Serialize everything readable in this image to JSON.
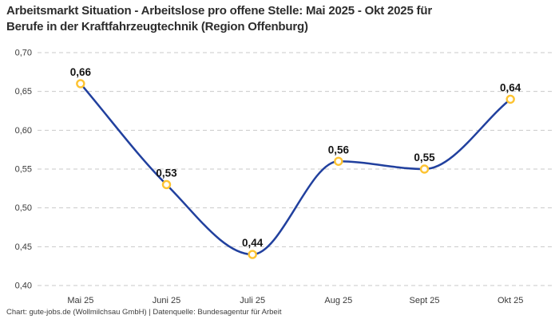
{
  "header": {
    "title_line1": "Arbeitsmarkt Situation - Arbeitslose pro offene Stelle: Mai 2025 - Okt 2025 für",
    "title_line2": "Berufe in der Kraftfahrzeugtechnik (Region Offenburg)"
  },
  "footer": {
    "credit": "Chart: gute-jobs.de (Wollmilchsau GmbH) | Datenquelle: Bundesagentur für Arbeit"
  },
  "chart_data": {
    "type": "line",
    "title": "Arbeitsmarkt Situation - Arbeitslose pro offene Stelle: Mai 2025 - Okt 2025 für Berufe in der Kraftfahrzeugtechnik (Region Offenburg)",
    "categories": [
      "Mai 25",
      "Juni 25",
      "Juli 25",
      "Aug 25",
      "Sept 25",
      "Okt 25"
    ],
    "values": [
      0.66,
      0.53,
      0.44,
      0.56,
      0.55,
      0.64
    ],
    "value_labels": [
      "0,66",
      "0,53",
      "0,44",
      "0,56",
      "0,55",
      "0,64"
    ],
    "xlabel": "",
    "ylabel": "",
    "ylim": [
      0.4,
      0.7
    ],
    "y_ticks": [
      0.7,
      0.65,
      0.6,
      0.55,
      0.5,
      0.45,
      0.4
    ],
    "y_tick_labels": [
      "0,70",
      "0,65",
      "0,60",
      "0,55",
      "0,50",
      "0,45",
      "0,40"
    ],
    "grid": "horizontal-dashed",
    "legend": "none",
    "curve": "smooth-monotone",
    "colors": {
      "line": "#21409e",
      "marker_stroke": "#fdc331",
      "marker_fill": "#ffffff",
      "grid": "#c9c9c9",
      "point_label": "#141414",
      "tick_label": "#3a3a3a",
      "title": "#2d2d2d",
      "background": "#ffffff"
    }
  }
}
